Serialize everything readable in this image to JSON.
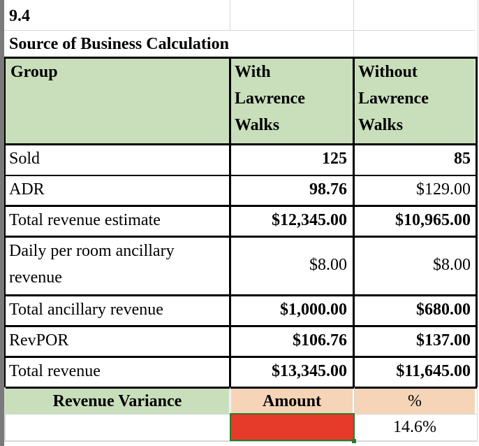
{
  "sheet": {
    "section_number": "9.4",
    "title": "Source of Business Calculation",
    "header": {
      "group": "Group",
      "with_col": [
        "With",
        "Lawrence",
        "Walks"
      ],
      "without_col": [
        "Without",
        "Lawrence",
        "Walks"
      ]
    },
    "rows": [
      {
        "label": "Sold",
        "with": "125",
        "without": "85"
      },
      {
        "label": "ADR",
        "with": "98.76",
        "without": "$129.00"
      },
      {
        "label": "Total revenue estimate",
        "with": "$12,345.00",
        "without": "$10,965.00"
      },
      {
        "label_line1": "Daily per room ancillary",
        "label_line2": "revenue",
        "with": "$8.00",
        "without": "$8.00"
      },
      {
        "label": "Total ancillary revenue",
        "with": "$1,000.00",
        "without": "$680.00"
      },
      {
        "label": "RevPOR",
        "with": "$106.76",
        "without": "$137.00"
      },
      {
        "label": "Total revenue",
        "with": "$13,345.00",
        "without": "$11,645.00"
      }
    ],
    "variance": {
      "label": "Revenue Variance",
      "amount_header": "Amount",
      "percent_header": "%",
      "amount_value": "",
      "percent_value": "14.6%"
    },
    "colors": {
      "header_green": "#c9dfbb",
      "variance_peach": "#f6d4b8",
      "selected_cell_red": "#e63a2a"
    }
  }
}
